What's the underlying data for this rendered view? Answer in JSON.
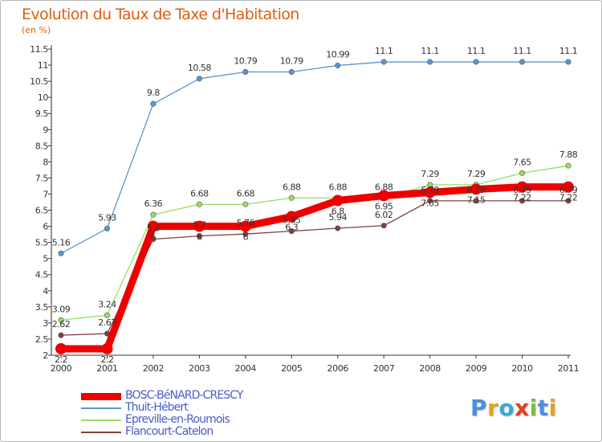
{
  "title": "Evolution du Taux de Taxe d'Habitation",
  "subtitle": "(en %)",
  "logo": {
    "text": "Proxiti",
    "colors": [
      "#4a90d9",
      "#e8a020",
      "#3aa9d8",
      "#e04020",
      "#7cc040",
      "#4a90d9",
      "#e8a020"
    ]
  },
  "chart_data": {
    "type": "line",
    "x": [
      2000,
      2001,
      2002,
      2003,
      2004,
      2005,
      2006,
      2007,
      2008,
      2009,
      2010,
      2011
    ],
    "ylim": [
      2,
      11.5
    ],
    "yticks": [
      "2",
      "2.5",
      "3",
      "3.5",
      "4",
      "4.5",
      "5",
      "5.5",
      "6",
      "6.5",
      "7",
      "7.5",
      "8",
      "8.5",
      "9",
      "9.5",
      "10",
      "10.5",
      "11",
      "11.5"
    ],
    "grid": false,
    "legend_position": "bottom-left",
    "series": [
      {
        "name": "BOSC-BéNARD-CRESCY",
        "color": "#ee0000",
        "values": [
          2.2,
          2.2,
          6,
          6,
          6,
          6.3,
          6.8,
          6.95,
          7.05,
          7.15,
          7.22,
          7.22
        ],
        "labels": [
          "2.2",
          "2.2",
          "6",
          "6",
          "6",
          "6.3",
          "6.8",
          "6.95",
          "7.05",
          "7.15",
          "7.22",
          "7.22"
        ]
      },
      {
        "name": "Thuit-Hébert",
        "color": "#5c96cc",
        "values": [
          5.16,
          5.93,
          9.8,
          10.58,
          10.79,
          10.79,
          10.99,
          11.1,
          11.1,
          11.1,
          11.1,
          11.1
        ],
        "labels": [
          "5.16",
          "5.93",
          "9.8",
          "10.58",
          "10.79",
          "10.79",
          "10.99",
          "11.1",
          "11.1",
          "11.1",
          "11.1",
          "11.1"
        ]
      },
      {
        "name": "Epreville-en-Roumois",
        "color": "#99dd66",
        "values": [
          3.09,
          3.24,
          6.36,
          6.68,
          6.68,
          6.88,
          6.88,
          6.88,
          7.29,
          7.29,
          7.65,
          7.88
        ],
        "labels": [
          "3.09",
          "3.24",
          "6.36",
          "6.68",
          "6.68",
          "6.88",
          "6.88",
          "6.88",
          "7.29",
          "7.29",
          "7.65",
          "7.88"
        ]
      },
      {
        "name": "Flancourt-Catelon",
        "color": "#804040",
        "values": [
          2.62,
          2.67,
          5.6,
          5.7,
          5.76,
          5.85,
          5.94,
          6.02,
          6.79,
          6.79,
          6.79,
          6.79
        ],
        "labels": [
          "2.62",
          "2.67",
          "5.6",
          "5.7",
          "5.76",
          "5.85",
          "5.94",
          "6.02",
          "6.79",
          "6.79",
          "6.79",
          "6.79"
        ]
      }
    ]
  }
}
